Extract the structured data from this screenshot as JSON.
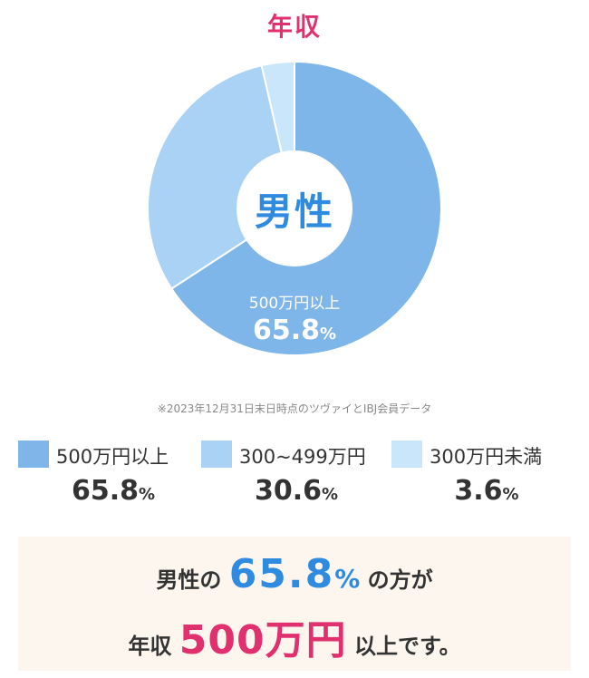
{
  "title": "年収",
  "center_label": "男性",
  "note": "※2023年12月31日末日時点のツヴァイとIBJ会員データ",
  "colors": {
    "title": "#e0306e",
    "accent_blue": "#2f8be0",
    "accent_red": "#e0306e",
    "summary_bg": "#fcf6ef"
  },
  "chart_data": {
    "type": "pie",
    "title": "年収",
    "categories": [
      "500万円以上",
      "300~499万円",
      "300万円未満"
    ],
    "values": [
      65.8,
      30.6,
      3.6
    ],
    "value_labels": [
      "65.8",
      "30.6",
      "3.6"
    ],
    "unit": "%",
    "colors": [
      "#7fb6ea",
      "#a9d2f4",
      "#c9e6fb"
    ],
    "donut": true,
    "direct_label": {
      "category": "500万円以上",
      "value": "65.8",
      "unit": "%"
    },
    "legend": "bottom"
  },
  "summary": {
    "line1_prefix": "男性の",
    "line1_value": "65.8",
    "line1_pct": "%",
    "line1_suffix": "の方が",
    "line2_prefix": "年収",
    "line2_value": "500万円",
    "line2_suffix": "以上です。"
  }
}
